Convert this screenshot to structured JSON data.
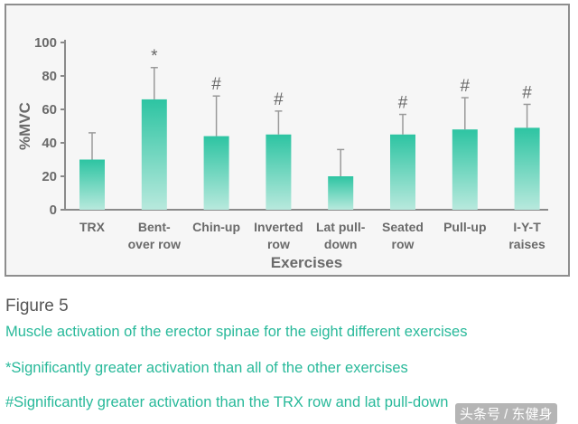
{
  "chart_data": {
    "type": "bar",
    "categories": [
      [
        "TRX"
      ],
      [
        "Bent-",
        "over row"
      ],
      [
        "Chin-up"
      ],
      [
        "Inverted",
        "row"
      ],
      [
        "Lat pull-",
        "down"
      ],
      [
        "Seated",
        "row"
      ],
      [
        "Pull-up"
      ],
      [
        "I-Y-T",
        "raises"
      ]
    ],
    "values": [
      30,
      66,
      44,
      45,
      20,
      45,
      48,
      49
    ],
    "errors": [
      16,
      19,
      24,
      14,
      16,
      12,
      19,
      14
    ],
    "significance": [
      "",
      "*",
      "#",
      "#",
      "",
      "#",
      "#",
      "#"
    ],
    "xlabel": "Exercises",
    "ylabel": "%MVC",
    "ylim": [
      0,
      100
    ],
    "yticks": [
      0,
      20,
      40,
      60,
      80,
      100
    ],
    "grid": false,
    "colors": {
      "bar_top": "#2dc4a2",
      "bar_bottom": "#b8e9dd",
      "error_bar": "#9a9a9a"
    }
  },
  "caption": {
    "figure_label": "Figure 5",
    "description": "Muscle activation of the erector spinae for the eight different exercises",
    "note_star": "*Significantly greater activation than all of the other exercises",
    "note_hash": "#Significantly greater activation than the TRX row and lat pull-down"
  },
  "watermark": "头条号 / 东健身"
}
